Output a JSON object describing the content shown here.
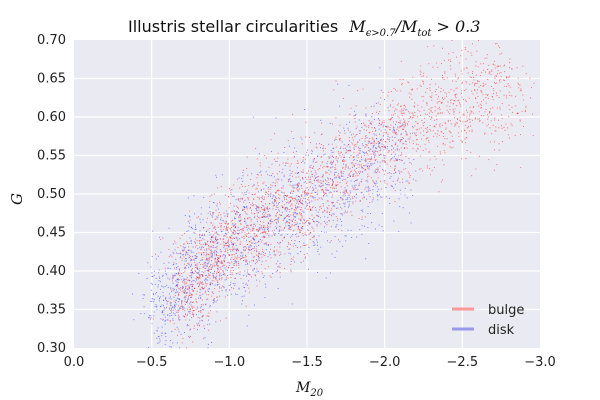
{
  "chart_data": {
    "type": "scatter",
    "title": "Illustris stellar circularities",
    "title_math": "M_{ε>0.7}/M_{tot} > 0.3",
    "xlabel": "M20",
    "ylabel": "G",
    "xlim": [
      0.0,
      -3.0
    ],
    "ylim": [
      0.3,
      0.7
    ],
    "x_inverted": true,
    "xticks": [
      0.0,
      -0.5,
      -1.0,
      -1.5,
      -2.0,
      -2.5,
      -3.0
    ],
    "xtick_labels": [
      "0.0",
      "−0.5",
      "−1.0",
      "−1.5",
      "−2.0",
      "−2.5",
      "−3.0"
    ],
    "yticks": [
      0.3,
      0.35,
      0.4,
      0.45,
      0.5,
      0.55,
      0.6,
      0.65,
      0.7
    ],
    "ytick_labels": [
      "0.30",
      "0.35",
      "0.40",
      "0.45",
      "0.50",
      "0.55",
      "0.60",
      "0.65",
      "0.70"
    ],
    "grid": true,
    "legend_position": "bottom-right",
    "background_color": "#eaeaf2",
    "series": [
      {
        "name": "bulge",
        "color": "#ff0000",
        "trend": [
          [
            -0.75,
            0.38
          ],
          [
            -1.0,
            0.44
          ],
          [
            -1.25,
            0.47
          ],
          [
            -1.5,
            0.5
          ],
          [
            -1.75,
            0.53
          ],
          [
            -2.0,
            0.57
          ],
          [
            -2.25,
            0.6
          ],
          [
            -2.5,
            0.62
          ],
          [
            -2.75,
            0.63
          ]
        ]
      },
      {
        "name": "disk",
        "color": "#0000ff",
        "trend": [
          [
            -0.6,
            0.36
          ],
          [
            -0.8,
            0.4
          ],
          [
            -1.0,
            0.43
          ],
          [
            -1.25,
            0.46
          ],
          [
            -1.5,
            0.49
          ],
          [
            -1.75,
            0.52
          ],
          [
            -2.0,
            0.55
          ]
        ]
      }
    ]
  }
}
